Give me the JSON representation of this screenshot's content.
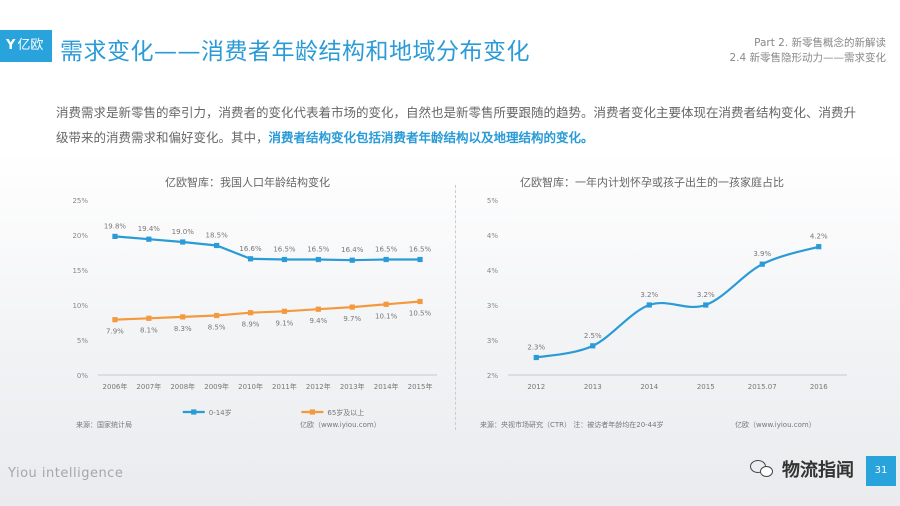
{
  "header": {
    "logo_mark": "Y",
    "logo_text": "亿欧",
    "title": "需求变化——消费者年龄结构和地域分布变化",
    "breadcrumb_line1": "Part 2. 新零售概念的新解读",
    "breadcrumb_line2": "2.4 新零售隐形动力——需求变化"
  },
  "intro": {
    "text": "消费需求是新零售的牵引力，消费者的变化代表着市场的变化，自然也是新零售所要跟随的趋势。消费者变化主要体现在消费者结构变化、消费升级带来的消费需求和偏好变化。其中，",
    "highlight": "消费者结构变化包括消费者年龄结构以及地理结构的变化。"
  },
  "left_chart": {
    "title": "亿欧智库：我国人口年龄结构变化",
    "source": "来源：国家统计局",
    "credit": "亿欧（www.iyiou.com）"
  },
  "right_chart": {
    "title": "亿欧智库：一年内计划怀孕或孩子出生的一孩家庭占比",
    "source": "来源：央视市场研究（CTR）  注：被访者年龄均在20-44岁",
    "credit": "亿欧（www.iyiou.com）"
  },
  "chart_data": [
    {
      "type": "line",
      "title": "亿欧智库：我国人口年龄结构变化",
      "categories": [
        "2006年",
        "2007年",
        "2008年",
        "2009年",
        "2010年",
        "2011年",
        "2012年",
        "2013年",
        "2014年",
        "2015年"
      ],
      "series": [
        {
          "name": "0-14岁",
          "values": [
            19.8,
            19.4,
            19.0,
            18.5,
            16.6,
            16.5,
            16.5,
            16.4,
            16.5,
            16.5
          ],
          "labels": [
            "19.8%",
            "19.4%",
            "19.0%",
            "18.5%",
            "16.6%",
            "16.5%",
            "16.5%",
            "16.4%",
            "16.5%",
            "16.5%"
          ],
          "color": "#2a9bd6"
        },
        {
          "name": "65岁及以上",
          "values": [
            7.9,
            8.1,
            8.3,
            8.5,
            8.9,
            9.1,
            9.4,
            9.7,
            10.1,
            10.5
          ],
          "labels": [
            "7.9%",
            "8.1%",
            "8.3%",
            "8.5%",
            "8.9%",
            "9.1%",
            "9.4%",
            "9.7%",
            "10.1%",
            "10.5%"
          ],
          "color": "#f39a3e"
        }
      ],
      "yticks": [
        "0%",
        "5%",
        "10%",
        "15%",
        "20%",
        "25%"
      ],
      "ylim": [
        0,
        25
      ],
      "grid": false,
      "legend": "bottom"
    },
    {
      "type": "line",
      "title": "亿欧智库：一年内计划怀孕或孩子出生的一孩家庭占比",
      "categories": [
        "2012",
        "2013",
        "2014",
        "2015",
        "2015.07",
        "2016"
      ],
      "series": [
        {
          "values": [
            2.3,
            2.5,
            3.2,
            3.2,
            3.9,
            4.2
          ],
          "labels": [
            "2.3%",
            "2.5%",
            "3.2%",
            "3.2%",
            "3.9%",
            "4.2%"
          ],
          "color": "#2a9bd6"
        }
      ],
      "yticks": [
        "2%",
        "3%",
        "3%",
        "4%",
        "4%",
        "5%"
      ],
      "ylim": [
        2,
        5
      ],
      "grid": false,
      "legend": "none"
    }
  ],
  "footer": {
    "brand": "Yiou intelligence",
    "wechat_name": "物流指闻",
    "page_number": "31"
  }
}
